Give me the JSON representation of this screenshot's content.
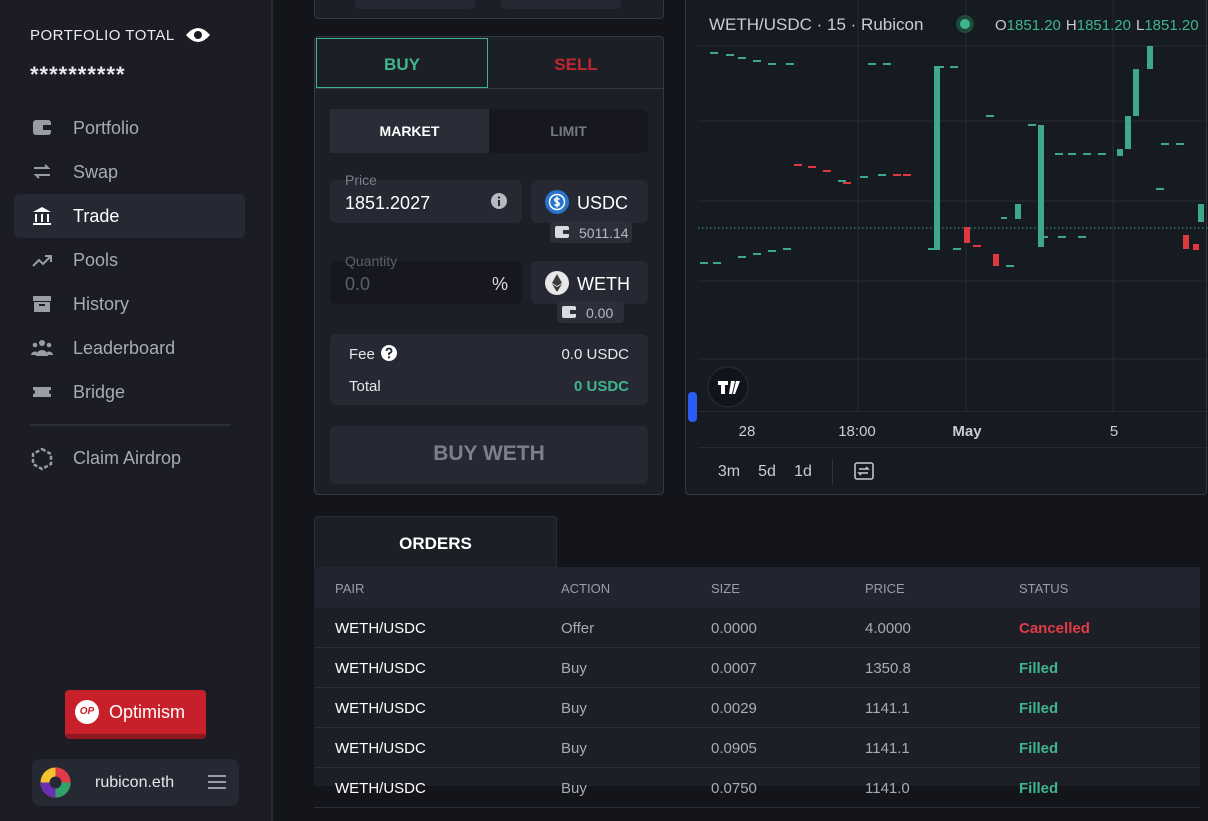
{
  "sidebar": {
    "portfolio_label": "PORTFOLIO TOTAL",
    "portfolio_value": "**********",
    "nav": [
      "Portfolio",
      "Swap",
      "Trade",
      "Pools",
      "History",
      "Leaderboard",
      "Bridge"
    ],
    "active": "Trade",
    "claim": "Claim Airdrop",
    "network_badge": "OP",
    "network": "Optimism",
    "account": "rubicon.eth"
  },
  "trade": {
    "side_tabs": [
      "BUY",
      "SELL"
    ],
    "order_tabs": [
      "MARKET",
      "LIMIT"
    ],
    "price_label": "Price",
    "price": "1851.2027",
    "price_token": "USDC",
    "price_balance": "5011.14",
    "quantity_label": "Quantity",
    "quantity": "0.0",
    "percent": "%",
    "quantity_token": "WETH",
    "quantity_balance": "0.00",
    "fee_label": "Fee",
    "fee": "0.0 USDC",
    "total_label": "Total",
    "total": "0 USDC",
    "submit": "BUY WETH"
  },
  "chart": {
    "title": "WETH/USDC · 15 · Rubicon",
    "ohlc": [
      {
        "label": "O",
        "value": "1851.20"
      },
      {
        "label": "H",
        "value": "1851.20"
      },
      {
        "label": "L",
        "value": "1851.20"
      }
    ],
    "x_labels": [
      "28",
      "18:00",
      "May",
      "5"
    ],
    "ranges": [
      "3m",
      "5d",
      "1d"
    ]
  },
  "orders": {
    "tab": "ORDERS",
    "columns": [
      "PAIR",
      "ACTION",
      "SIZE",
      "PRICE",
      "STATUS"
    ],
    "rows": [
      {
        "pair": "WETH/USDC",
        "action": "Offer",
        "size": "0.0000",
        "price": "4.0000",
        "status": "Cancelled",
        "status_color": "#e23b45"
      },
      {
        "pair": "WETH/USDC",
        "action": "Buy",
        "size": "0.0007",
        "price": "1350.8",
        "status": "Filled",
        "status_color": "#3fb58d"
      },
      {
        "pair": "WETH/USDC",
        "action": "Buy",
        "size": "0.0029",
        "price": "1141.1",
        "status": "Filled",
        "status_color": "#3fb58d"
      },
      {
        "pair": "WETH/USDC",
        "action": "Buy",
        "size": "0.0905",
        "price": "1141.1",
        "status": "Filled",
        "status_color": "#3fb58d"
      },
      {
        "pair": "WETH/USDC",
        "action": "Buy",
        "size": "0.0750",
        "price": "1141.0",
        "status": "Filled",
        "status_color": "#3fb58d"
      }
    ]
  }
}
